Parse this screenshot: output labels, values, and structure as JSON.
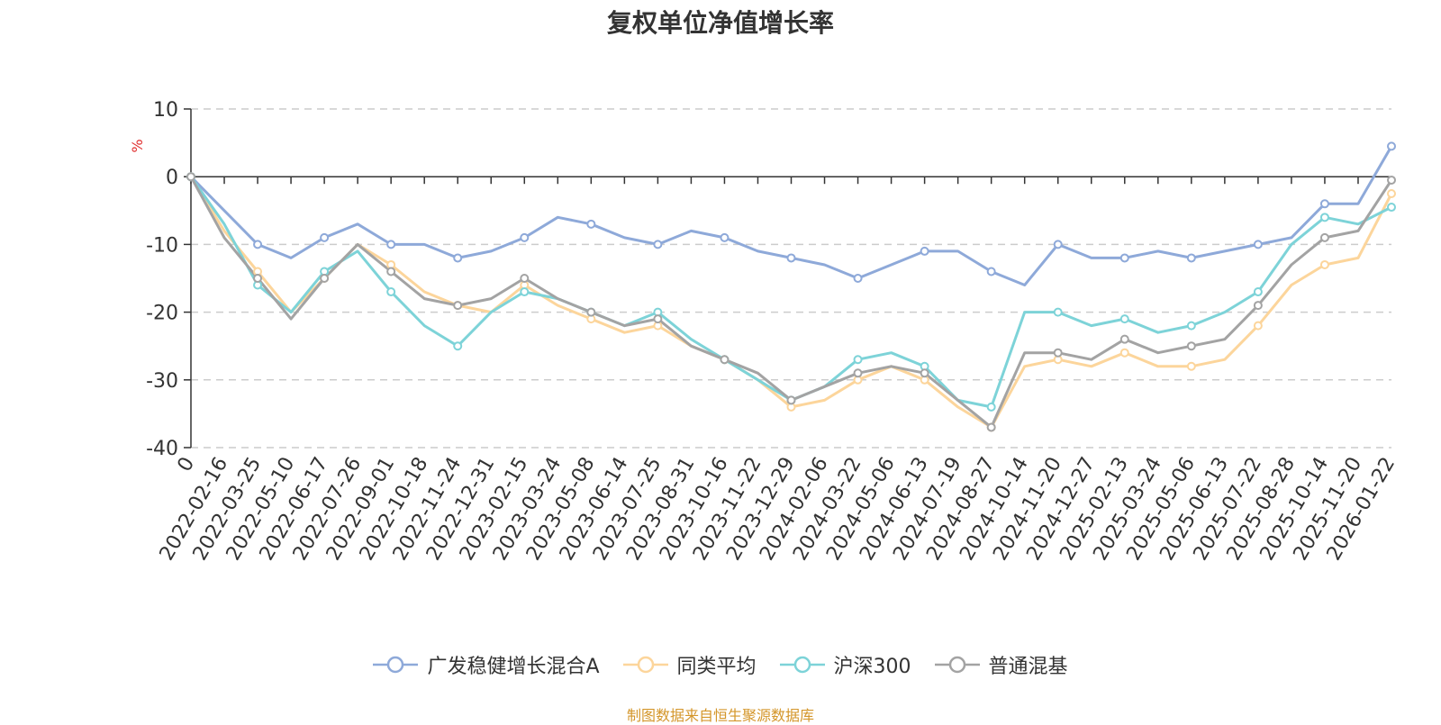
{
  "chart_data": {
    "type": "line",
    "title": "复权单位净值增长率",
    "ylabel": "%",
    "ylim": [
      -40,
      10
    ],
    "yticks": [
      "10",
      "0",
      "-10",
      "-20",
      "-30",
      "-40"
    ],
    "x_labels": [
      "0",
      "2022-02-16",
      "2022-03-25",
      "2022-05-10",
      "2022-06-17",
      "2022-07-26",
      "2022-09-01",
      "2022-10-18",
      "2022-11-24",
      "2022-12-31",
      "2023-02-15",
      "2023-03-24",
      "2023-05-08",
      "2023-06-14",
      "2023-07-25",
      "2023-08-31",
      "2023-10-16",
      "2023-11-22",
      "2023-12-29",
      "2024-02-06",
      "2024-03-22",
      "2024-05-06",
      "2024-06-13",
      "2024-07-19",
      "2024-08-27",
      "2024-10-14",
      "2024-11-20",
      "2024-12-27",
      "2025-02-13",
      "2025-03-24",
      "2025-05-06",
      "2025-06-13",
      "2025-07-22",
      "2025-08-28",
      "2025-10-14",
      "2025-11-20",
      "2026-01-22"
    ],
    "series": [
      {
        "name": "广发稳健增长混合A",
        "color": "#8ea9d9",
        "values": [
          0,
          -5,
          -10,
          -12,
          -9,
          -7,
          -10,
          -10,
          -12,
          -11,
          -9,
          -6,
          -7,
          -9,
          -10,
          -8,
          -9,
          -11,
          -12,
          -13,
          -15,
          -13,
          -11,
          -11,
          -14,
          -16,
          -10,
          -12,
          -12,
          -11,
          -12,
          -11,
          -10,
          -9,
          -4,
          -4,
          4.5
        ]
      },
      {
        "name": "同类平均",
        "color": "#fcd59b",
        "values": [
          0,
          -8,
          -14,
          -20,
          -15,
          -10,
          -13,
          -17,
          -19,
          -20,
          -16,
          -19,
          -21,
          -23,
          -22,
          -25,
          -27,
          -30,
          -34,
          -33,
          -30,
          -28,
          -30,
          -34,
          -37,
          -28,
          -27,
          -28,
          -26,
          -28,
          -28,
          -27,
          -22,
          -16,
          -13,
          -12,
          -2.5
        ]
      },
      {
        "name": "沪深300",
        "color": "#7dd3d8",
        "values": [
          0,
          -7,
          -16,
          -20,
          -14,
          -11,
          -17,
          -22,
          -25,
          -20,
          -17,
          -18,
          -20,
          -22,
          -20,
          -24,
          -27,
          -30,
          -33,
          -31,
          -27,
          -26,
          -28,
          -33,
          -34,
          -20,
          -20,
          -22,
          -21,
          -23,
          -22,
          -20,
          -17,
          -10,
          -6,
          -7,
          -4.5
        ]
      },
      {
        "name": "普通混基",
        "color": "#a3a3a3",
        "values": [
          0,
          -9,
          -15,
          -21,
          -15,
          -10,
          -14,
          -18,
          -19,
          -18,
          -15,
          -18,
          -20,
          -22,
          -21,
          -25,
          -27,
          -29,
          -33,
          -31,
          -29,
          -28,
          -29,
          -33,
          -37,
          -26,
          -26,
          -27,
          -24,
          -26,
          -25,
          -24,
          -19,
          -13,
          -9,
          -8,
          -0.5
        ]
      }
    ]
  },
  "source_note": "制图数据来自恒生聚源数据库"
}
